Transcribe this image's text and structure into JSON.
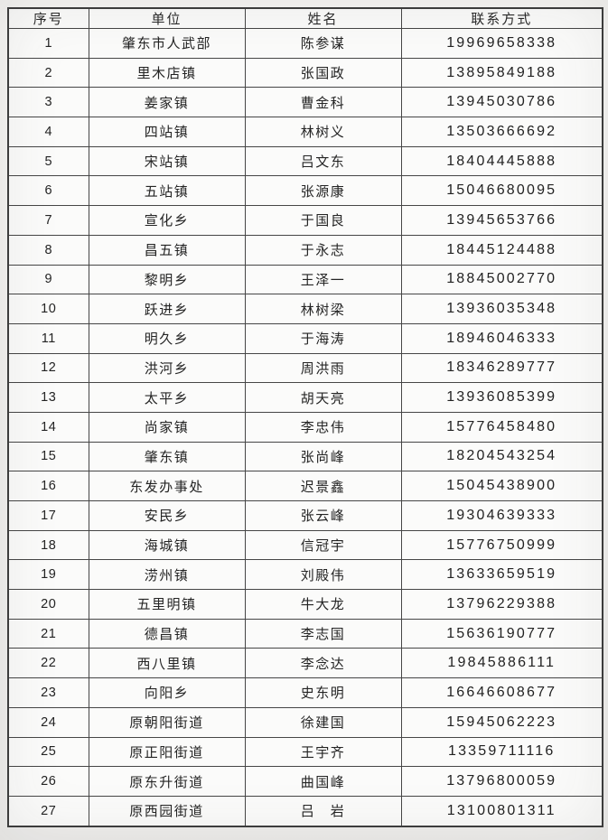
{
  "table": {
    "columns": [
      {
        "key": "no",
        "label": "序号"
      },
      {
        "key": "unit",
        "label": "单位"
      },
      {
        "key": "name",
        "label": "姓名"
      },
      {
        "key": "phone",
        "label": "联系方式"
      }
    ],
    "rows": [
      {
        "no": "1",
        "unit": "肇东市人武部",
        "name": "陈参谋",
        "phone": "19969658338"
      },
      {
        "no": "2",
        "unit": "里木店镇",
        "name": "张国政",
        "phone": "13895849188"
      },
      {
        "no": "3",
        "unit": "姜家镇",
        "name": "曹金科",
        "phone": "13945030786"
      },
      {
        "no": "4",
        "unit": "四站镇",
        "name": "林树义",
        "phone": "13503666692"
      },
      {
        "no": "5",
        "unit": "宋站镇",
        "name": "吕文东",
        "phone": "18404445888"
      },
      {
        "no": "6",
        "unit": "五站镇",
        "name": "张源康",
        "phone": "15046680095"
      },
      {
        "no": "7",
        "unit": "宣化乡",
        "name": "于国良",
        "phone": "13945653766"
      },
      {
        "no": "8",
        "unit": "昌五镇",
        "name": "于永志",
        "phone": "18445124488"
      },
      {
        "no": "9",
        "unit": "黎明乡",
        "name": "王泽一",
        "phone": "18845002770"
      },
      {
        "no": "10",
        "unit": "跃进乡",
        "name": "林树梁",
        "phone": "13936035348"
      },
      {
        "no": "11",
        "unit": "明久乡",
        "name": "于海涛",
        "phone": "18946046333"
      },
      {
        "no": "12",
        "unit": "洪河乡",
        "name": "周洪雨",
        "phone": "18346289777"
      },
      {
        "no": "13",
        "unit": "太平乡",
        "name": "胡天亮",
        "phone": "13936085399"
      },
      {
        "no": "14",
        "unit": "尚家镇",
        "name": "李忠伟",
        "phone": "15776458480"
      },
      {
        "no": "15",
        "unit": "肇东镇",
        "name": "张尚峰",
        "phone": "18204543254"
      },
      {
        "no": "16",
        "unit": "东发办事处",
        "name": "迟景鑫",
        "phone": "15045438900"
      },
      {
        "no": "17",
        "unit": "安民乡",
        "name": "张云峰",
        "phone": "19304639333"
      },
      {
        "no": "18",
        "unit": "海城镇",
        "name": "信冠宇",
        "phone": "15776750999"
      },
      {
        "no": "19",
        "unit": "涝州镇",
        "name": "刘殿伟",
        "phone": "13633659519"
      },
      {
        "no": "20",
        "unit": "五里明镇",
        "name": "牛大龙",
        "phone": "13796229388"
      },
      {
        "no": "21",
        "unit": "德昌镇",
        "name": "李志国",
        "phone": "15636190777"
      },
      {
        "no": "22",
        "unit": "西八里镇",
        "name": "李念达",
        "phone": "19845886111"
      },
      {
        "no": "23",
        "unit": "向阳乡",
        "name": "史东明",
        "phone": "16646608677"
      },
      {
        "no": "24",
        "unit": "原朝阳街道",
        "name": "徐建国",
        "phone": "15945062223"
      },
      {
        "no": "25",
        "unit": "原正阳街道",
        "name": "王宇齐",
        "phone": "13359711116"
      },
      {
        "no": "26",
        "unit": "原东升街道",
        "name": "曲国峰",
        "phone": "13796800059"
      },
      {
        "no": "27",
        "unit": "原西园街道",
        "name": "吕　岩",
        "phone": "13100801311"
      }
    ]
  }
}
